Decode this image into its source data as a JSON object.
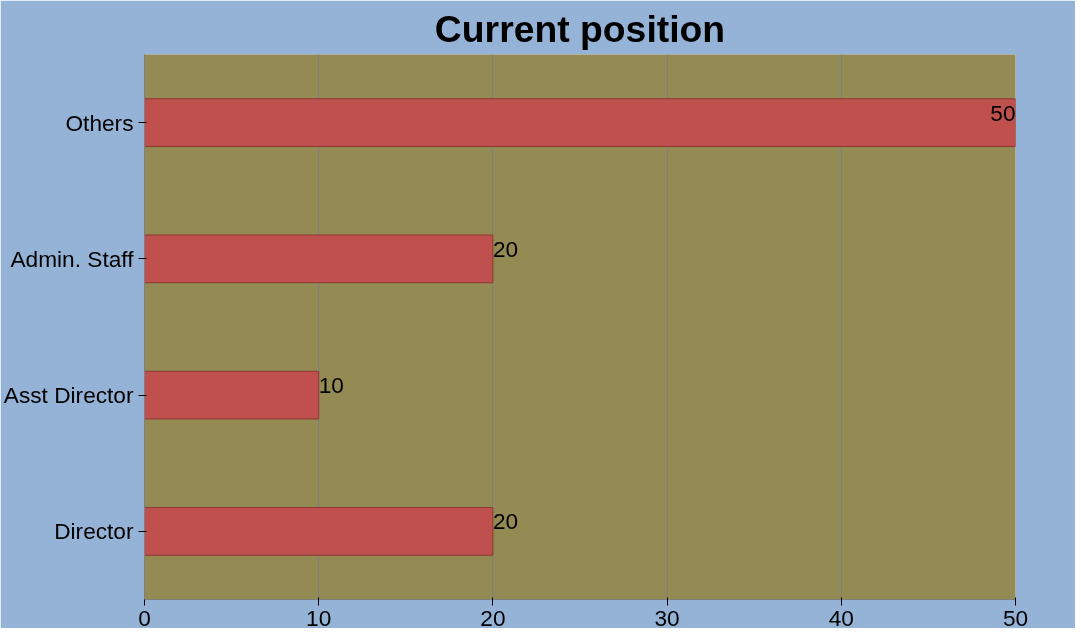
{
  "chart_data": {
    "type": "bar",
    "orientation": "horizontal",
    "title": "Current position",
    "categories": [
      "Others",
      "Admin. Staff",
      "Asst Director",
      "Director"
    ],
    "values": [
      50,
      20,
      10,
      20
    ],
    "color": "#c0504d",
    "xlim": [
      0,
      50
    ],
    "xticks": [
      0,
      10,
      20,
      30,
      40,
      50
    ],
    "grid": "x",
    "data_labels": true
  }
}
